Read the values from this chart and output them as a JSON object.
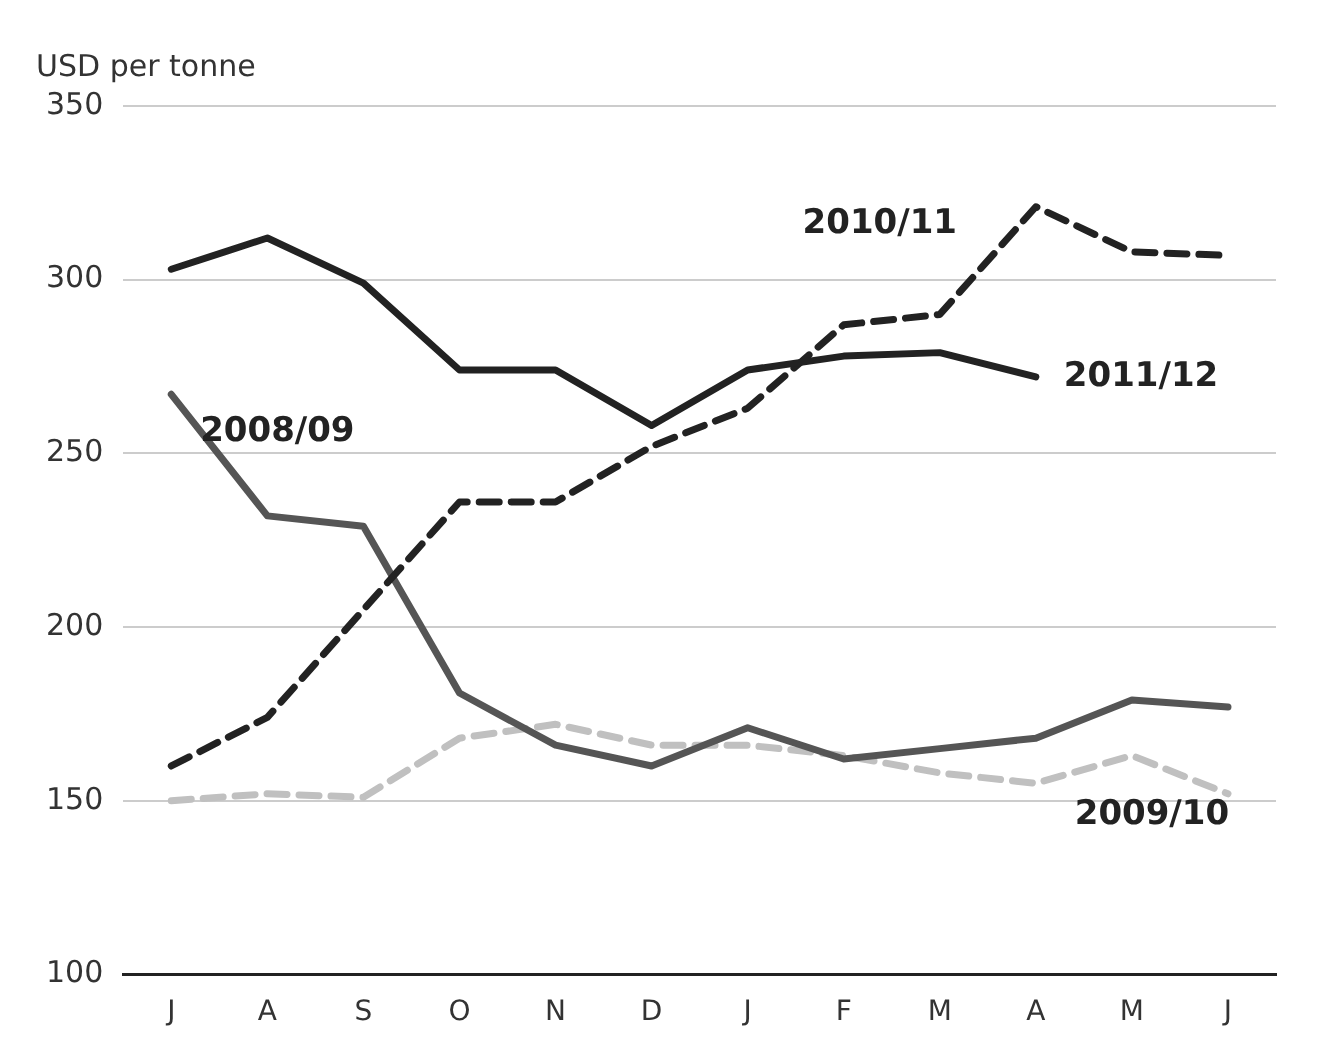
{
  "chart_data": {
    "type": "line",
    "ylabel": "USD per tonne",
    "categories": [
      "J",
      "A",
      "S",
      "O",
      "N",
      "D",
      "J",
      "F",
      "M",
      "A",
      "M",
      "J"
    ],
    "ylim": [
      100,
      350
    ],
    "yticks": [
      100,
      150,
      200,
      250,
      300,
      350
    ],
    "grid": "y",
    "legend": false,
    "marker": "none",
    "series": [
      {
        "name": "2011/12",
        "color": "#222222",
        "line_style": "solid",
        "values": [
          303,
          312,
          299,
          274,
          274,
          258,
          274,
          278,
          279,
          272,
          null,
          null
        ]
      },
      {
        "name": "2010/11",
        "color": "#222222",
        "line_style": "dashed",
        "values": [
          160,
          174,
          205,
          236,
          236,
          252,
          263,
          287,
          290,
          321,
          308,
          307
        ]
      },
      {
        "name": "2008/09",
        "color": "#555555",
        "line_style": "solid",
        "values": [
          267,
          232,
          229,
          181,
          166,
          160,
          171,
          162,
          165,
          168,
          179,
          177
        ]
      },
      {
        "name": "2009/10",
        "color": "#c0c0c0",
        "line_style": "dashed",
        "values": [
          150,
          152,
          151,
          168,
          172,
          166,
          166,
          163,
          158,
          155,
          163,
          152
        ]
      }
    ]
  }
}
